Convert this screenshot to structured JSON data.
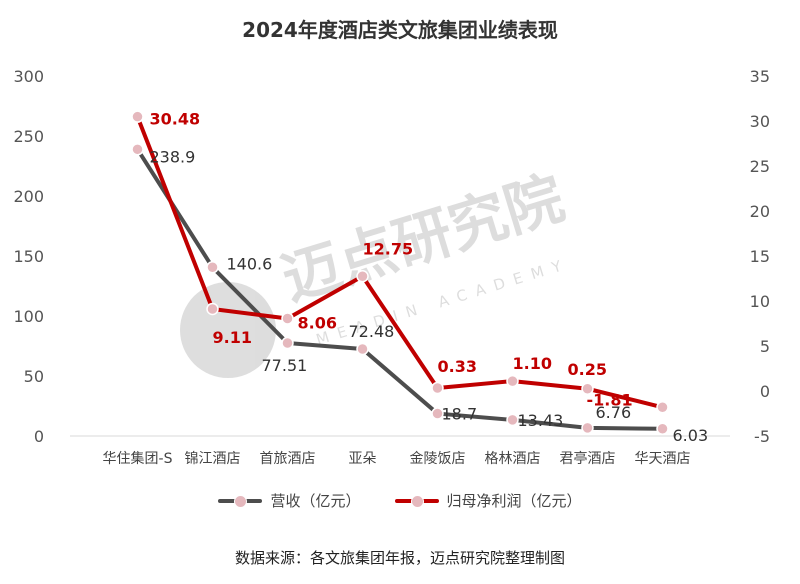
{
  "chart_data": {
    "type": "line",
    "title": "2024年度酒店类文旅集团业绩表现",
    "categories": [
      "华住集团-S",
      "锦江酒店",
      "首旅酒店",
      "亚朵",
      "金陵饭店",
      "格林酒店",
      "君亭酒店",
      "华天酒店"
    ],
    "series": [
      {
        "name": "营收（亿元）",
        "axis": "left",
        "color": "#4d4d4d",
        "values": [
          238.9,
          140.6,
          77.51,
          72.48,
          18.7,
          13.43,
          6.76,
          6.03
        ],
        "labels": [
          "238.9",
          "140.6",
          "77.51",
          "72.48",
          "18.7",
          "13.43",
          "6.76",
          "6.03"
        ]
      },
      {
        "name": "归母净利润（亿元）",
        "axis": "right",
        "color": "#c00000",
        "values": [
          30.48,
          9.11,
          8.06,
          12.75,
          0.33,
          1.1,
          0.25,
          -1.81
        ],
        "labels": [
          "30.48",
          "9.11",
          "8.06",
          "12.75",
          "0.33",
          "1.10",
          "0.25",
          "-1.81"
        ]
      }
    ],
    "y_left": {
      "min": 0,
      "max": 300,
      "ticks": [
        "0",
        "50",
        "100",
        "150",
        "200",
        "250",
        "300"
      ]
    },
    "y_right": {
      "min": -5,
      "max": 35,
      "ticks": [
        "-5",
        "0",
        "5",
        "10",
        "15",
        "20",
        "25",
        "30",
        "35"
      ]
    },
    "grid": false,
    "legend": "bottom",
    "marker_color": "#e5b8bd"
  },
  "source": "数据来源：各文旅集团年报，迈点研究院整理制图",
  "watermark": {
    "main": "迈点研究院",
    "sub": "MEADIN ACADEMY"
  }
}
